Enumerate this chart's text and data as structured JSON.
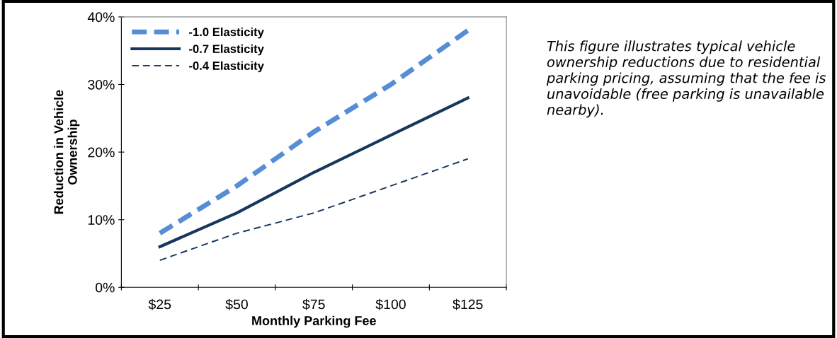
{
  "chart_data": {
    "type": "line",
    "xlabel": "Monthly Parking Fee",
    "ylabel": "Reduction in Vehicle\nOwnership",
    "categories": [
      "$25",
      "$50",
      "$75",
      "$100",
      "$125"
    ],
    "series": [
      {
        "name": "-1.0 Elasticity",
        "color": "#558ed5",
        "values": [
          8,
          15,
          23,
          30,
          38
        ],
        "line_style": "dashed"
      },
      {
        "name": "-0.7 Elasticity",
        "color": "#17375e",
        "values": [
          6,
          11,
          17,
          22.5,
          28
        ],
        "line_style": "solid"
      },
      {
        "name": "-0.4 Elasticity",
        "color": "#17375e",
        "values": [
          4,
          8,
          11,
          15,
          19
        ],
        "line_style": "dashed"
      }
    ],
    "ylim": [
      0,
      40
    ],
    "yticks": [
      {
        "value": 0,
        "label": "0%"
      },
      {
        "value": 10,
        "label": "10%"
      },
      {
        "value": 20,
        "label": "20%"
      },
      {
        "value": 30,
        "label": "30%"
      },
      {
        "value": 40,
        "label": "40%"
      }
    ],
    "grid": false,
    "legend": "top left",
    "marker": "none",
    "annotations": [
      "This figure illustrates typical vehicle ownership reductions due to residential parking pricing, assuming that the fee is unavoidable (free parking is unavailable nearby)."
    ]
  }
}
